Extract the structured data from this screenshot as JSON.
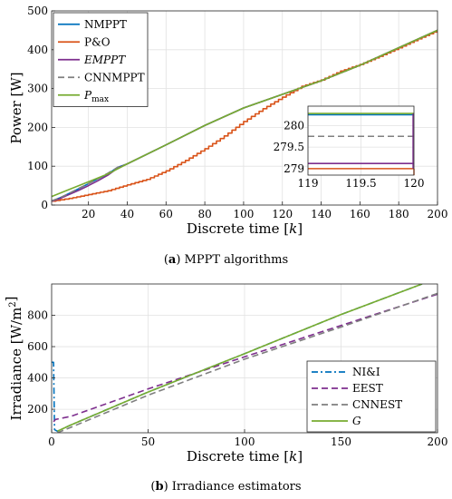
{
  "figure": {
    "caption_a_letter": "(a)",
    "caption_a_text": "MPPT algorithms",
    "caption_b_letter": "(b)",
    "caption_b_text": "Irradiance estimators"
  },
  "chart_data": [
    {
      "type": "line",
      "xlabel": "Discrete time [k]",
      "ylabel": "Power [W]",
      "xlim": [
        1,
        200
      ],
      "ylim": [
        0,
        500
      ],
      "xticks": [
        20,
        40,
        60,
        80,
        100,
        120,
        140,
        160,
        180,
        200
      ],
      "yticks": [
        0,
        100,
        200,
        300,
        400,
        500
      ],
      "grid": true,
      "legend_placement": "top-left",
      "series": [
        {
          "name": "NMPPT",
          "color": "#0072BD",
          "dash": "solid",
          "x": [
            1,
            5,
            10,
            15,
            20,
            25,
            30,
            35,
            40,
            60,
            80,
            100,
            120,
            140,
            160,
            180,
            200
          ],
          "y": [
            10,
            18,
            30,
            42,
            55,
            68,
            80,
            97,
            106,
            155,
            205,
            250,
            285,
            320,
            360,
            405,
            450
          ]
        },
        {
          "name": "P&O",
          "color": "#D95319",
          "dash": "solid",
          "x": [
            1,
            10,
            20,
            30,
            40,
            50,
            60,
            70,
            80,
            90,
            100,
            110,
            120,
            130,
            140,
            150,
            160,
            170,
            180,
            190,
            200
          ],
          "y": [
            10,
            17,
            27,
            37,
            52,
            66,
            88,
            115,
            145,
            178,
            215,
            248,
            278,
            306,
            322,
            345,
            362,
            383,
            405,
            428,
            450
          ]
        },
        {
          "name": "EMPPT",
          "color": "#7E2F8E",
          "dash": "solid",
          "x": [
            1,
            5,
            10,
            15,
            20,
            25,
            30,
            35,
            40,
            60,
            80,
            100,
            120,
            140,
            160,
            180,
            200
          ],
          "y": [
            10,
            16,
            27,
            38,
            50,
            63,
            77,
            95,
            106,
            155,
            205,
            250,
            285,
            320,
            360,
            405,
            450
          ]
        },
        {
          "name": "CNNMPPT",
          "color": "#7F7F7F",
          "dash": "dashed",
          "x": [
            1,
            5,
            10,
            15,
            20,
            25,
            30,
            35,
            40,
            60,
            80,
            100,
            120,
            140,
            160,
            180,
            200
          ],
          "y": [
            11,
            18,
            30,
            43,
            55,
            68,
            82,
            97,
            106,
            155,
            205,
            250,
            285,
            320,
            360,
            405,
            450
          ]
        },
        {
          "name": "P_max",
          "color": "#77AC30",
          "dash": "solid",
          "x": [
            1,
            10,
            20,
            30,
            40,
            60,
            80,
            100,
            120,
            140,
            160,
            180,
            200
          ],
          "y": [
            22,
            40,
            60,
            80,
            106,
            155,
            205,
            250,
            285,
            320,
            360,
            405,
            450
          ]
        }
      ],
      "inset": {
        "xlim": [
          119,
          120
        ],
        "ylim": [
          278.85,
          280.45
        ],
        "xticks": [
          119,
          119.5,
          120
        ],
        "yticks": [
          279,
          279.5,
          280
        ],
        "series": [
          {
            "name": "NMPPT",
            "x": [
              119,
              120
            ],
            "y": [
              280.25,
              280.25
            ]
          },
          {
            "name": "P&O",
            "x": [
              119,
              120
            ],
            "y": [
              279.0,
              279.0
            ]
          },
          {
            "name": "EMPPT",
            "x": [
              119,
              120
            ],
            "y": [
              279.12,
              279.12
            ]
          },
          {
            "name": "CNNMPPT",
            "x": [
              119,
              120
            ],
            "y": [
              279.75,
              279.75
            ]
          },
          {
            "name": "P_max",
            "x": [
              119,
              120
            ],
            "y": [
              280.28,
              280.28
            ]
          }
        ]
      }
    },
    {
      "type": "line",
      "xlabel": "Discrete time [k]",
      "ylabel": "Irradiance [W/m2]",
      "xlim": [
        0,
        200
      ],
      "ylim": [
        50,
        1000
      ],
      "xticks": [
        0,
        50,
        100,
        150,
        200
      ],
      "yticks": [
        200,
        400,
        600,
        800
      ],
      "grid": true,
      "legend_placement": "bottom-right",
      "series": [
        {
          "name": "NI&I",
          "color": "#0072BD",
          "dash": "dashdot",
          "x": [
            0,
            1,
            1.5,
            3,
            10,
            50,
            100,
            150,
            192
          ],
          "y": [
            500,
            500,
            70,
            60,
            100,
            310,
            555,
            805,
            1000
          ]
        },
        {
          "name": "EEST",
          "color": "#7E2F8E",
          "dash": "dashed",
          "x": [
            1,
            2,
            10,
            50,
            100,
            150,
            200
          ],
          "y": [
            120,
            135,
            155,
            330,
            535,
            735,
            935
          ]
        },
        {
          "name": "CNNEST",
          "color": "#7F7F7F",
          "dash": "dashed",
          "x": [
            3,
            10,
            50,
            100,
            150,
            200
          ],
          "y": [
            50,
            85,
            290,
            520,
            725,
            940
          ]
        },
        {
          "name": "G",
          "color": "#77AC30",
          "dash": "solid",
          "x": [
            3,
            10,
            50,
            100,
            150,
            192
          ],
          "y": [
            60,
            100,
            310,
            555,
            805,
            1000
          ]
        }
      ]
    }
  ]
}
